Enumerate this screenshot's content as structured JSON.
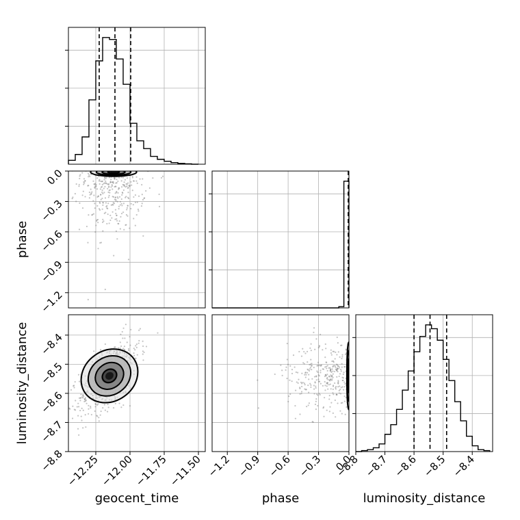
{
  "chart_data": {
    "type": "scatter",
    "parameters": [
      {
        "name": "geocent_time",
        "range": [
          -12.45,
          -11.45
        ],
        "ticks": [
          -12.25,
          -12.0,
          -11.75,
          -11.5
        ],
        "tick_labels": [
          "−12.25",
          "−12.00",
          "−11.75",
          "−11.50"
        ]
      },
      {
        "name": "phase",
        "range": [
          -1.35,
          0.0
        ],
        "ticks": [
          -1.2,
          -0.9,
          -0.6,
          -0.3,
          0.0
        ],
        "tick_labels": [
          "−1.2",
          "−0.9",
          "−0.6",
          "−0.3",
          "0.0"
        ]
      },
      {
        "name": "luminosity_distance",
        "range": [
          -8.8,
          -8.33
        ],
        "ticks": [
          -8.8,
          -8.7,
          -8.6,
          -8.5,
          -8.4
        ],
        "tick_labels": [
          "−8.8",
          "−8.7",
          "−8.6",
          "−8.5",
          "−8.4"
        ]
      }
    ],
    "diagonal_histograms": {
      "geocent_time": {
        "bin_edges": [
          -12.45,
          -12.4,
          -12.35,
          -12.3,
          -12.25,
          -12.2,
          -12.15,
          -12.1,
          -12.05,
          -12.0,
          -11.95,
          -11.9,
          -11.85,
          -11.8,
          -11.75,
          -11.7,
          -11.65,
          -11.6,
          -11.55,
          -11.5
        ],
        "counts": [
          2,
          5,
          14,
          33,
          53,
          65,
          64,
          54,
          41,
          21,
          12,
          8,
          4,
          2.5,
          1.5,
          0.8,
          0.4,
          0.2,
          0
        ],
        "quantiles": [
          -12.225,
          -12.11,
          -11.995
        ]
      },
      "phase": {
        "bin_edges": [
          -1.35,
          -1.3,
          -1.25,
          -1.2,
          -1.15,
          -1.1,
          -1.05,
          -1.0,
          -0.95,
          -0.9,
          -0.85,
          -0.8,
          -0.75,
          -0.7,
          -0.65,
          -0.6,
          -0.55,
          -0.5,
          -0.45,
          -0.4,
          -0.35,
          -0.3,
          -0.25,
          -0.2,
          -0.15,
          -0.1,
          -0.05,
          0.0
        ],
        "counts": [
          0,
          0,
          0,
          0,
          0,
          0,
          0,
          0,
          0,
          0,
          0,
          0,
          0,
          0,
          0,
          0,
          0,
          0,
          0,
          0,
          0,
          0,
          0,
          0,
          0,
          1,
          100
        ],
        "quantiles": [
          -0.003
        ]
      },
      "luminosity_distance": {
        "bin_edges": [
          -8.8,
          -8.78,
          -8.76,
          -8.74,
          -8.72,
          -8.7,
          -8.68,
          -8.66,
          -8.64,
          -8.62,
          -8.6,
          -8.58,
          -8.56,
          -8.54,
          -8.52,
          -8.5,
          -8.48,
          -8.46,
          -8.44,
          -8.42,
          -8.4,
          -8.38,
          -8.36,
          -8.34
        ],
        "counts": [
          0,
          0.5,
          1,
          2,
          4,
          9,
          14,
          22,
          32,
          42,
          52,
          60,
          66,
          64,
          58,
          48,
          37,
          26,
          16,
          8,
          3,
          1,
          0.5
        ],
        "quantiles": [
          -8.6,
          -8.545,
          -8.488
        ]
      }
    },
    "contour_levels_sigma": [
      0.5,
      1.0,
      1.5,
      2.0
    ],
    "pairs": [
      {
        "x": "geocent_time",
        "y": "phase",
        "center": [
          -12.12,
          -0.01
        ],
        "spread": [
          0.08,
          0.02
        ],
        "scatter_spread": [
          0.12,
          0.3
        ],
        "correlation": 0
      },
      {
        "x": "geocent_time",
        "y": "luminosity_distance",
        "center": [
          -12.15,
          -8.54
        ],
        "spread": [
          0.09,
          0.055
        ],
        "scatter_spread": [
          0.11,
          0.065
        ],
        "correlation": 0.6
      },
      {
        "x": "phase",
        "y": "luminosity_distance",
        "center": [
          -0.004,
          -8.54
        ],
        "spread": [
          0.008,
          0.055
        ],
        "scatter_spread": [
          0.3,
          0.06
        ],
        "correlation": 0
      }
    ],
    "grid": true,
    "title": ""
  }
}
